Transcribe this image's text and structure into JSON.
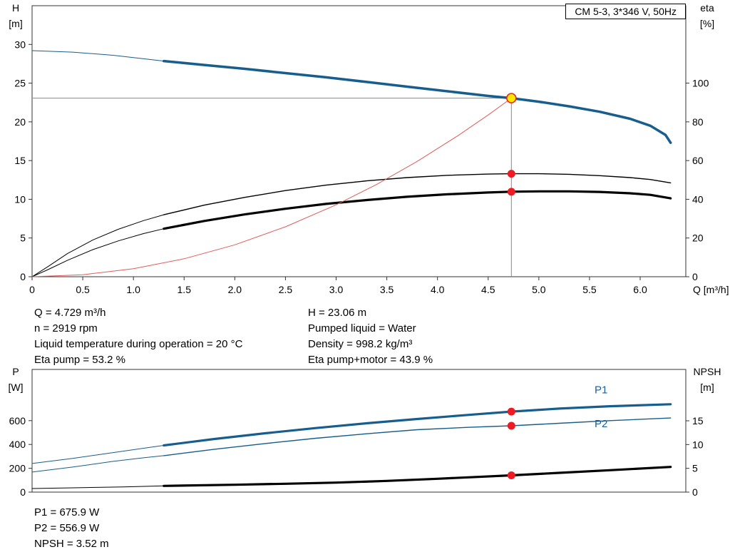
{
  "title_box": "CM 5-3, 3*346 V, 50Hz",
  "colors": {
    "curve_blue": "#175d8d",
    "curve_black": "#000000",
    "system_red": "#e05c5c",
    "dot_red": "#ed1c24",
    "op_yellow": "#ffe600",
    "crosshair_gray": "#8a8a8a",
    "axis": "#333333",
    "label_blue": "#1b5e97"
  },
  "info_top": {
    "left": [
      "Q = 4.729 m³/h",
      "n = 2919 rpm",
      "Liquid temperature during operation = 20 °C",
      "Eta pump = 53.2 %"
    ],
    "right": [
      "H = 23.06 m",
      "Pumped liquid = Water",
      "Density = 998.2 kg/m³",
      "Eta pump+motor = 43.9 %"
    ]
  },
  "info_bottom": [
    "P1 = 675.9 W",
    "P2 = 556.9 W",
    "NPSH = 3.52 m"
  ],
  "chart_data": [
    {
      "type": "line",
      "name": "performance",
      "x": {
        "label": "Q [m³/h]",
        "min": 0,
        "max": 6.45,
        "ticks": [
          "0",
          "0.5",
          "1.0",
          "1.5",
          "2.0",
          "2.5",
          "3.0",
          "3.5",
          "4.0",
          "4.5",
          "5.0",
          "5.5",
          "6.0"
        ]
      },
      "y_left": {
        "label": "H",
        "unit": "[m]",
        "min": 0,
        "max": 35,
        "ticks": [
          "0",
          "5",
          "10",
          "15",
          "20",
          "25",
          "30"
        ]
      },
      "y_right": {
        "label": "eta",
        "unit": "[%]",
        "min": 0,
        "max": 140,
        "ticks": [
          "0",
          "20",
          "40",
          "60",
          "80",
          "100"
        ]
      },
      "series": [
        {
          "name": "head-curve-extension",
          "axis": "left",
          "color_key": "curve_blue",
          "width": 1,
          "points": [
            [
              0,
              29.2
            ],
            [
              0.4,
              29.0
            ],
            [
              0.8,
              28.6
            ],
            [
              1.1,
              28.15
            ],
            [
              1.3,
              27.85
            ]
          ]
        },
        {
          "name": "head-curve",
          "axis": "left",
          "color_key": "curve_blue",
          "width": 3.5,
          "points": [
            [
              1.3,
              27.85
            ],
            [
              1.7,
              27.35
            ],
            [
              2.1,
              26.85
            ],
            [
              2.5,
              26.3
            ],
            [
              2.9,
              25.75
            ],
            [
              3.3,
              25.15
            ],
            [
              3.7,
              24.55
            ],
            [
              4.1,
              23.95
            ],
            [
              4.5,
              23.35
            ],
            [
              4.729,
              23.06
            ],
            [
              5.0,
              22.6
            ],
            [
              5.3,
              22.0
            ],
            [
              5.6,
              21.3
            ],
            [
              5.9,
              20.4
            ],
            [
              6.1,
              19.5
            ],
            [
              6.25,
              18.3
            ],
            [
              6.3,
              17.3
            ]
          ]
        },
        {
          "name": "eta-pump-extension",
          "axis": "right",
          "color_key": "curve_black",
          "width": 1,
          "points": [
            [
              0,
              0
            ],
            [
              0.15,
              5
            ],
            [
              0.35,
              12
            ],
            [
              0.6,
              19
            ],
            [
              0.85,
              24.5
            ],
            [
              1.1,
              29
            ],
            [
              1.3,
              32
            ]
          ]
        },
        {
          "name": "eta-pump-curve",
          "axis": "right",
          "color_key": "curve_black",
          "width": 1.4,
          "points": [
            [
              1.3,
              32
            ],
            [
              1.7,
              37
            ],
            [
              2.1,
              41
            ],
            [
              2.5,
              44.5
            ],
            [
              2.9,
              47.3
            ],
            [
              3.3,
              49.5
            ],
            [
              3.7,
              51.2
            ],
            [
              4.1,
              52.4
            ],
            [
              4.5,
              53.0
            ],
            [
              4.729,
              53.2
            ],
            [
              5.0,
              53.2
            ],
            [
              5.3,
              52.9
            ],
            [
              5.6,
              52.2
            ],
            [
              5.9,
              51.2
            ],
            [
              6.1,
              50.2
            ],
            [
              6.3,
              48.5
            ]
          ]
        },
        {
          "name": "eta-pump-motor-extension",
          "axis": "right",
          "color_key": "curve_black",
          "width": 1,
          "points": [
            [
              0,
              0
            ],
            [
              0.15,
              3.5
            ],
            [
              0.35,
              8.5
            ],
            [
              0.6,
              14
            ],
            [
              0.85,
              18.5
            ],
            [
              1.1,
              22.3
            ],
            [
              1.3,
              24.8
            ]
          ]
        },
        {
          "name": "eta-pump-motor-curve",
          "axis": "right",
          "color_key": "curve_black",
          "width": 3.2,
          "points": [
            [
              1.3,
              24.8
            ],
            [
              1.7,
              28.8
            ],
            [
              2.1,
              32.2
            ],
            [
              2.5,
              35.1
            ],
            [
              2.9,
              37.6
            ],
            [
              3.3,
              39.6
            ],
            [
              3.7,
              41.3
            ],
            [
              4.1,
              42.6
            ],
            [
              4.5,
              43.5
            ],
            [
              4.729,
              43.9
            ],
            [
              5.0,
              44.1
            ],
            [
              5.3,
              44.1
            ],
            [
              5.6,
              43.8
            ],
            [
              5.9,
              43.1
            ],
            [
              6.1,
              42.3
            ],
            [
              6.3,
              40.5
            ]
          ]
        },
        {
          "name": "system-curve",
          "axis": "left",
          "color_key": "system_red",
          "width": 1,
          "points": [
            [
              0,
              0
            ],
            [
              0.5,
              0.26
            ],
            [
              1,
              1.03
            ],
            [
              1.5,
              2.32
            ],
            [
              2,
              4.12
            ],
            [
              2.5,
              6.45
            ],
            [
              3,
              9.28
            ],
            [
              3.4,
              11.92
            ],
            [
              3.8,
              14.89
            ],
            [
              4.2,
              18.2
            ],
            [
              4.5,
              20.89
            ],
            [
              4.729,
              23.06
            ]
          ]
        }
      ],
      "crosshair": {
        "q": 4.729,
        "value": 23.06,
        "axis": "left"
      },
      "operating_point": {
        "q": 4.729,
        "value": 23.06,
        "axis": "left"
      },
      "dots": [
        {
          "axis": "right",
          "q": 4.729,
          "value": 53.2
        },
        {
          "axis": "right",
          "q": 4.729,
          "value": 43.9
        }
      ],
      "labels": []
    },
    {
      "type": "line",
      "name": "power-npsh",
      "x": {
        "label": "",
        "min": 0,
        "max": 6.45,
        "ticks": []
      },
      "y_left": {
        "label": "P",
        "unit": "[W]",
        "min": 0,
        "max": 1030,
        "ticks": [
          "0",
          "200",
          "400",
          "600"
        ]
      },
      "y_right": {
        "label": "NPSH",
        "unit": "[m]",
        "min": 0,
        "max": 25.8,
        "ticks": [
          "0",
          "5",
          "10",
          "15"
        ]
      },
      "series": [
        {
          "name": "p1-extension",
          "axis": "left",
          "color_key": "curve_blue",
          "width": 1,
          "points": [
            [
              0,
              240
            ],
            [
              0.4,
              283
            ],
            [
              0.8,
              332
            ],
            [
              1.1,
              368
            ],
            [
              1.3,
              392
            ]
          ]
        },
        {
          "name": "p1-curve",
          "axis": "left",
          "color_key": "curve_blue",
          "width": 3.2,
          "points": [
            [
              1.3,
              392
            ],
            [
              1.8,
              446
            ],
            [
              2.3,
              494
            ],
            [
              2.8,
              538
            ],
            [
              3.3,
              578
            ],
            [
              3.8,
              614
            ],
            [
              4.3,
              648
            ],
            [
              4.729,
              676
            ],
            [
              5.2,
              701
            ],
            [
              5.7,
              721
            ],
            [
              6.3,
              738
            ]
          ]
        },
        {
          "name": "p2-extension",
          "axis": "left",
          "color_key": "curve_blue",
          "width": 1,
          "points": [
            [
              0,
              168
            ],
            [
              0.4,
              210
            ],
            [
              0.8,
              258
            ],
            [
              1.1,
              288
            ],
            [
              1.3,
              306
            ]
          ]
        },
        {
          "name": "p2-curve",
          "axis": "left",
          "color_key": "curve_blue",
          "width": 1.4,
          "points": [
            [
              1.3,
              306
            ],
            [
              1.8,
              360
            ],
            [
              2.3,
              408
            ],
            [
              2.8,
              452
            ],
            [
              3.3,
              490
            ],
            [
              3.8,
              524
            ],
            [
              4.3,
              544
            ],
            [
              4.729,
              557
            ],
            [
              5.2,
              578
            ],
            [
              5.7,
              600
            ],
            [
              6.3,
              622
            ]
          ]
        },
        {
          "name": "npsh-extension",
          "axis": "right",
          "color_key": "curve_black",
          "width": 1,
          "points": [
            [
              0,
              0.75
            ],
            [
              0.5,
              0.95
            ],
            [
              0.9,
              1.1
            ],
            [
              1.3,
              1.3
            ]
          ]
        },
        {
          "name": "npsh-curve",
          "axis": "right",
          "color_key": "curve_black",
          "width": 3.2,
          "points": [
            [
              1.3,
              1.3
            ],
            [
              2,
              1.55
            ],
            [
              2.5,
              1.75
            ],
            [
              3,
              2.0
            ],
            [
              3.5,
              2.35
            ],
            [
              4,
              2.8
            ],
            [
              4.4,
              3.2
            ],
            [
              4.729,
              3.52
            ],
            [
              5.2,
              4.05
            ],
            [
              5.7,
              4.6
            ],
            [
              6.3,
              5.3
            ]
          ]
        }
      ],
      "crosshair": null,
      "operating_point": null,
      "dots": [
        {
          "axis": "left",
          "q": 4.729,
          "value": 675.9
        },
        {
          "axis": "left",
          "q": 4.729,
          "value": 556.9
        },
        {
          "axis": "right",
          "q": 4.729,
          "value": 3.52
        }
      ],
      "labels": [
        {
          "text": "P1",
          "q": 5.55,
          "value": 830,
          "axis": "left"
        },
        {
          "text": "P2",
          "q": 5.55,
          "value": 545,
          "axis": "left"
        }
      ]
    }
  ]
}
